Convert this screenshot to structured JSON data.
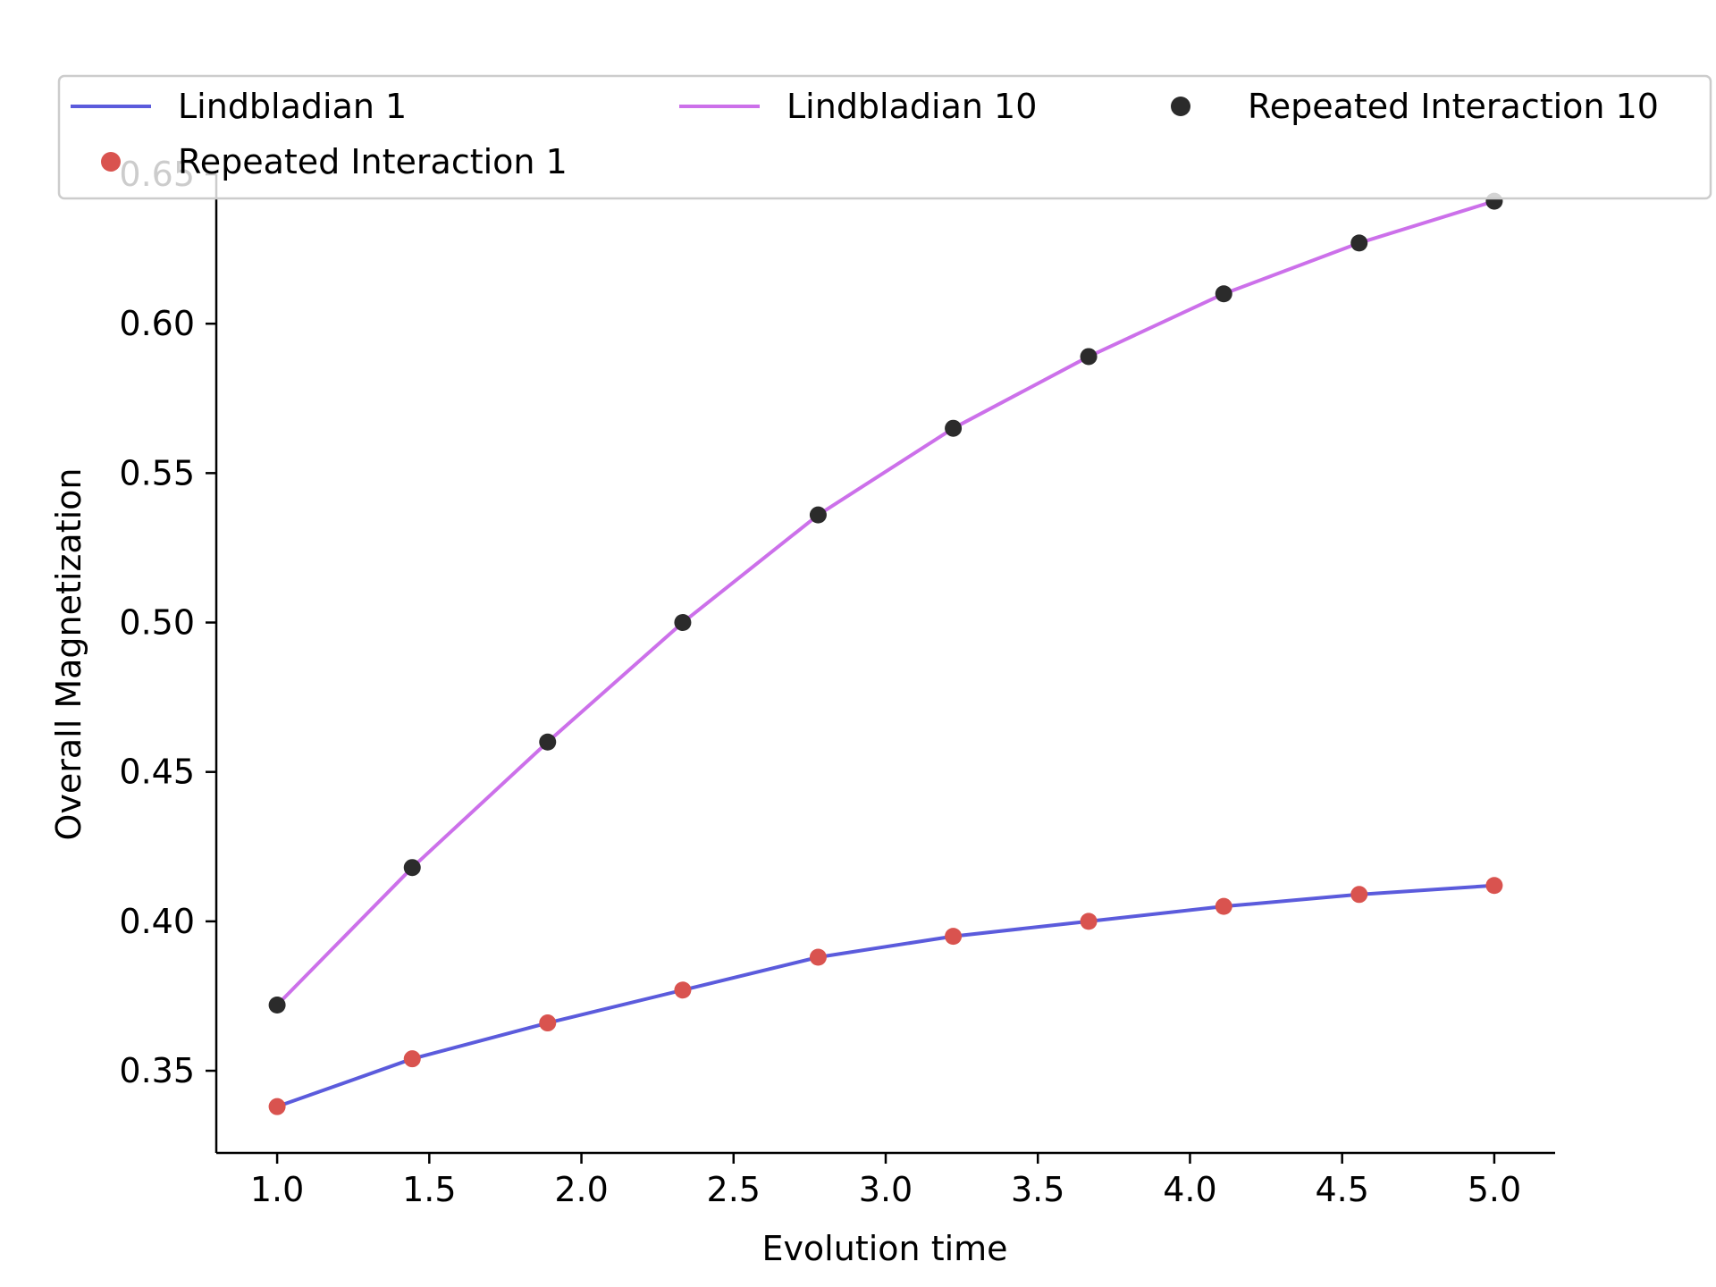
{
  "chart_data": {
    "type": "line",
    "title": "",
    "xlabel": "Evolution time",
    "ylabel": "Overall Magnetization",
    "xlim": [
      0.8,
      5.2
    ],
    "ylim": [
      0.3225,
      0.65
    ],
    "xticks": [
      1.0,
      1.5,
      2.0,
      2.5,
      3.0,
      3.5,
      4.0,
      4.5,
      5.0
    ],
    "xtick_labels": [
      "1.0",
      "1.5",
      "2.0",
      "2.5",
      "3.0",
      "3.5",
      "4.0",
      "4.5",
      "5.0"
    ],
    "yticks": [
      0.35,
      0.4,
      0.45,
      0.5,
      0.55,
      0.6,
      0.65
    ],
    "ytick_labels": [
      "0.35",
      "0.40",
      "0.45",
      "0.50",
      "0.55",
      "0.60",
      "0.65"
    ],
    "grid": false,
    "legend_placement": "top",
    "x": [
      1.0,
      1.444,
      1.889,
      2.333,
      2.778,
      3.222,
      3.667,
      4.111,
      4.556,
      5.0
    ],
    "series": [
      {
        "name": "Lindbladian 1",
        "kind": "line",
        "color": "#5b5bdc",
        "values": [
          0.338,
          0.354,
          0.366,
          0.377,
          0.388,
          0.395,
          0.4,
          0.405,
          0.409,
          0.412
        ]
      },
      {
        "name": "Lindbladian 10",
        "kind": "line",
        "color": "#cc70ea",
        "values": [
          0.372,
          0.418,
          0.46,
          0.5,
          0.536,
          0.565,
          0.589,
          0.61,
          0.627,
          0.641
        ]
      },
      {
        "name": "Repeated Interaction 10",
        "kind": "scatter",
        "color": "#2b2b2b",
        "values": [
          0.372,
          0.418,
          0.46,
          0.5,
          0.536,
          0.565,
          0.589,
          0.61,
          0.627,
          0.641
        ]
      },
      {
        "name": "Repeated Interaction 1",
        "kind": "scatter",
        "color": "#d9534f",
        "values": [
          0.338,
          0.354,
          0.366,
          0.377,
          0.388,
          0.395,
          0.4,
          0.405,
          0.409,
          0.412
        ]
      }
    ]
  }
}
